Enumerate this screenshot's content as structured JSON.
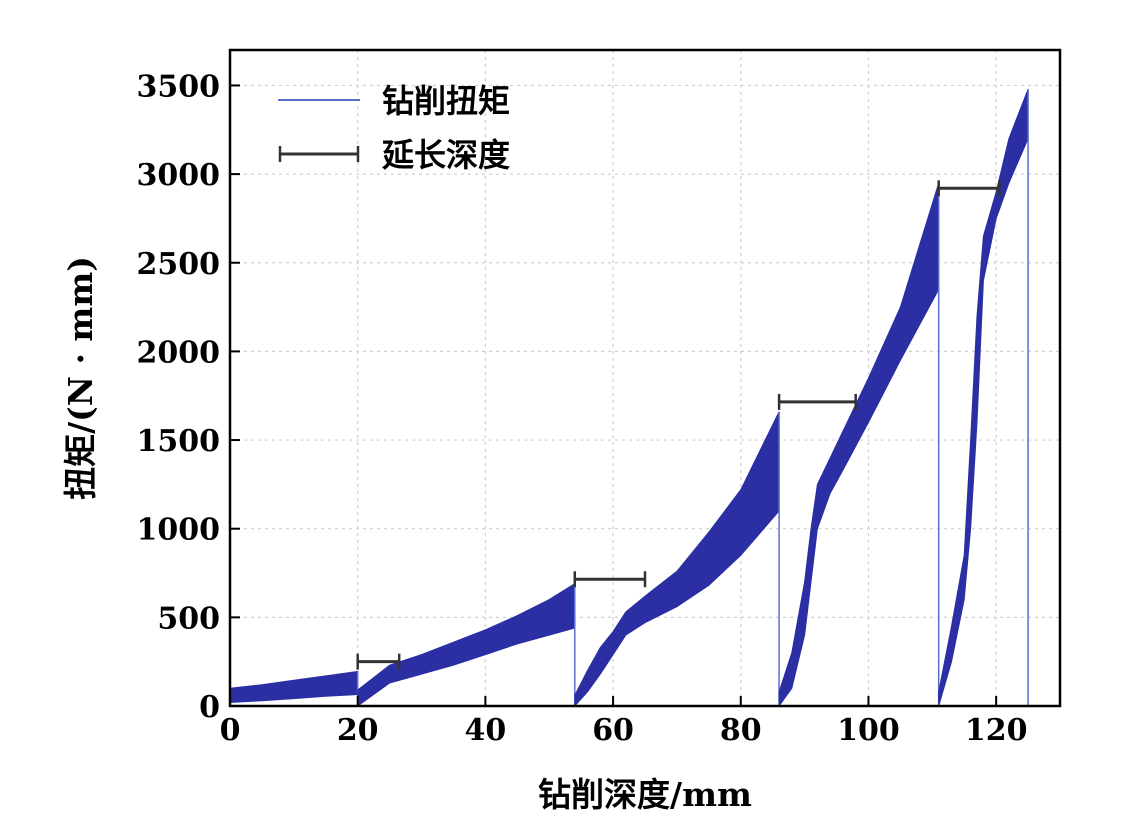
{
  "chart_data": {
    "type": "area",
    "xlabel": "钻削深度/mm",
    "ylabel": "扭矩/(N · mm)",
    "xlim": [
      0,
      130
    ],
    "ylim": [
      0,
      3700
    ],
    "xticks": [
      0,
      20,
      40,
      60,
      80,
      100,
      120
    ],
    "yticks": [
      0,
      500,
      1000,
      1500,
      2000,
      2500,
      3000,
      3500
    ],
    "grid": true,
    "legend_position": "top-left",
    "legend": [
      {
        "label": "钻削扭矩",
        "marker": "line"
      },
      {
        "label": "延长深度",
        "marker": "errorbar"
      }
    ],
    "colors": {
      "torque": "#2b2fa3",
      "extension": "#333333",
      "grid": "#d0d0d0"
    },
    "series": [
      {
        "name": "钻削扭矩",
        "segments": [
          {
            "x": [
              0,
              5,
              10,
              15,
              20
            ],
            "lower": [
              20,
              30,
              42,
              55,
              65
            ],
            "upper": [
              100,
              120,
              145,
              170,
              195
            ]
          },
          {
            "x": [
              20,
              25,
              30,
              35,
              40,
              45,
              50,
              54
            ],
            "lower": [
              0,
              130,
              180,
              230,
              290,
              350,
              400,
              440
            ],
            "upper": [
              90,
              230,
              290,
              360,
              430,
              510,
              600,
              690
            ]
          },
          {
            "x": [
              54,
              56,
              58,
              60,
              62,
              65,
              70,
              75,
              80,
              86
            ],
            "lower": [
              0,
              80,
              180,
              290,
              400,
              470,
              560,
              680,
              850,
              1100
            ],
            "upper": [
              60,
              200,
              330,
              420,
              530,
              620,
              760,
              980,
              1220,
              1660
            ]
          },
          {
            "x": [
              86,
              88,
              90,
              91,
              92,
              94,
              96,
              100,
              105,
              111
            ],
            "lower": [
              0,
              100,
              400,
              700,
              1000,
              1200,
              1330,
              1600,
              1950,
              2350
            ],
            "upper": [
              80,
              300,
              700,
              1000,
              1250,
              1400,
              1550,
              1850,
              2250,
              2950
            ]
          },
          {
            "x": [
              111,
              113,
              115,
              116,
              117,
              118,
              120,
              122,
              125
            ],
            "lower": [
              0,
              250,
              600,
              1000,
              1600,
              2400,
              2750,
              2950,
              3200
            ],
            "upper": [
              80,
              450,
              850,
              1500,
              2200,
              2650,
              2900,
              3200,
              3480
            ]
          }
        ]
      },
      {
        "name": "延长深度",
        "intervals": [
          {
            "x_start": 20,
            "x_end": 26.5,
            "y": 250
          },
          {
            "x_start": 54,
            "x_end": 65,
            "y": 715
          },
          {
            "x_start": 86,
            "x_end": 98,
            "y": 1715
          },
          {
            "x_start": 111,
            "x_end": 120.5,
            "y": 2920
          }
        ]
      }
    ]
  }
}
